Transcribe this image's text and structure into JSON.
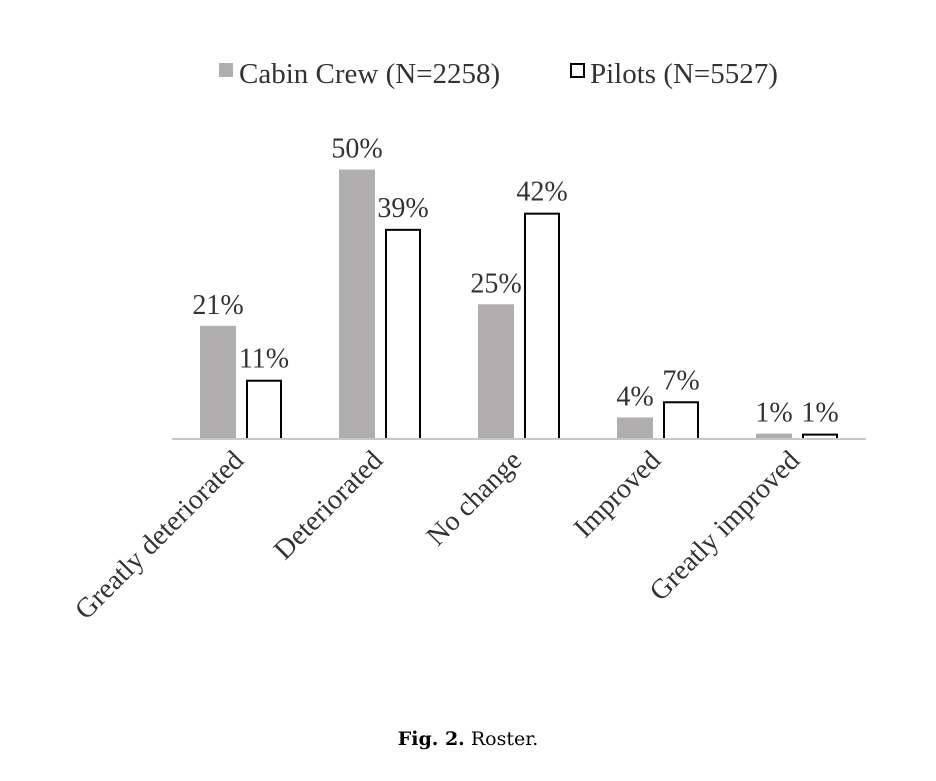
{
  "chart_data": {
    "type": "bar",
    "categories": [
      "Greatly deteriorated",
      "Deteriorated",
      "No change",
      "Improved",
      "Greatly improved"
    ],
    "series": [
      {
        "name": "Cabin Crew (N=2258)",
        "values": [
          21,
          50,
          25,
          4,
          1
        ],
        "labels": [
          "21%",
          "50%",
          "25%",
          "4%",
          "1%"
        ],
        "color": "#b0aeae",
        "style": "filled"
      },
      {
        "name": "Pilots (N=5527)",
        "values": [
          11,
          39,
          42,
          7,
          1
        ],
        "labels": [
          "11%",
          "39%",
          "42%",
          "7%",
          "1%"
        ],
        "color": "#000000",
        "style": "outline"
      }
    ],
    "ylim": [
      0,
      54
    ],
    "grid": false,
    "legend_position": "top-center",
    "axis_color": "#c8c8c8"
  },
  "caption": {
    "number": "Fig. 2.",
    "text": "Roster."
  }
}
